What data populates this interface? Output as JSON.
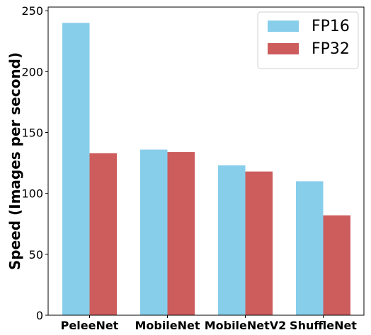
{
  "chart_data": {
    "type": "bar",
    "categories": [
      "PeleeNet",
      "MobileNet",
      "MobileNetV2",
      "ShuffleNet"
    ],
    "series": [
      {
        "name": "FP16",
        "color": "#87ceeb",
        "values": [
          240,
          136,
          123,
          110
        ]
      },
      {
        "name": "FP32",
        "color": "#cd5c5c",
        "values": [
          133,
          134,
          118,
          82
        ]
      }
    ],
    "title": "",
    "xlabel": "",
    "ylabel": "Speed (Images per second)",
    "ylim": [
      0,
      253
    ],
    "yticks": [
      0,
      50,
      100,
      150,
      200,
      250
    ],
    "grid": false,
    "legend_position": "top-right"
  }
}
